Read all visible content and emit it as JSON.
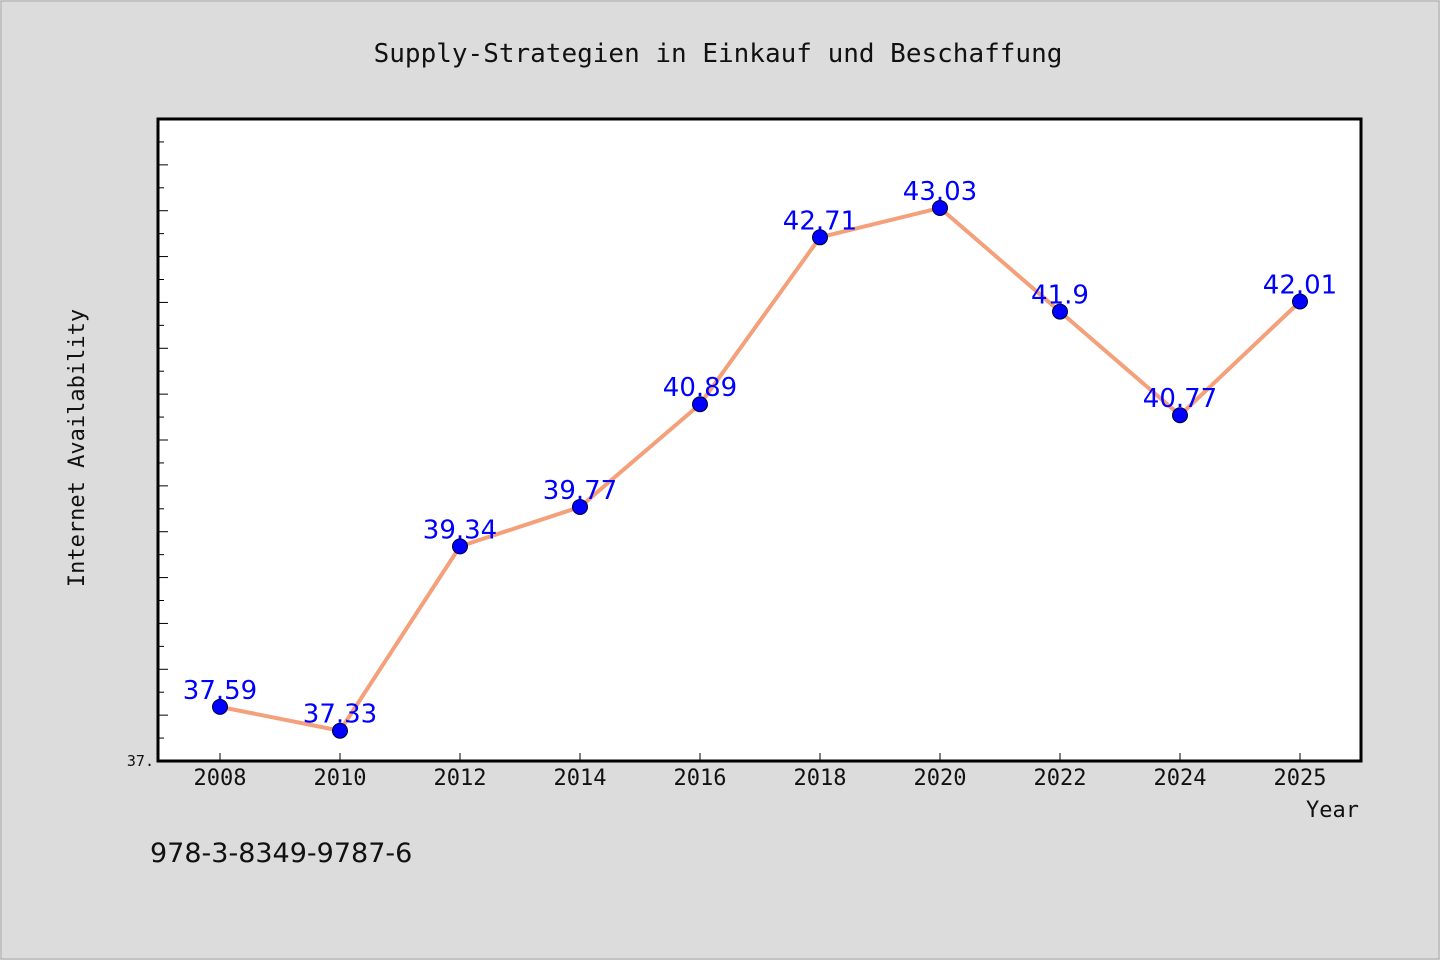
{
  "chart_data": {
    "type": "line",
    "title": "Supply-Strategien in Einkauf und Beschaffung",
    "xlabel": "Year",
    "ylabel": "Internet Availability",
    "x": [
      "2008",
      "2010",
      "2012",
      "2014",
      "2016",
      "2018",
      "2020",
      "2022",
      "2024",
      "2025"
    ],
    "series": [
      {
        "values": [
          37.59,
          37.33,
          39.34,
          39.77,
          40.89,
          42.71,
          43.03,
          41.9,
          40.77,
          42.01
        ],
        "labels": [
          "37.59",
          "37.33",
          "39.34",
          "39.77",
          "40.89",
          "42.71",
          "43.03",
          "41.9",
          "40.77",
          "42.01"
        ]
      }
    ],
    "ylim": [
      37.0,
      44.0
    ],
    "y_tick_labels": [
      "37."
    ],
    "line_color": "#f4a07a",
    "marker_color": "#0000ff",
    "label_color": "#0000ff",
    "grid": false
  },
  "footer": {
    "text": "978-3-8349-9787-6"
  },
  "colors": {
    "background": "#dcdcdc",
    "plot_background": "#ffffff"
  }
}
